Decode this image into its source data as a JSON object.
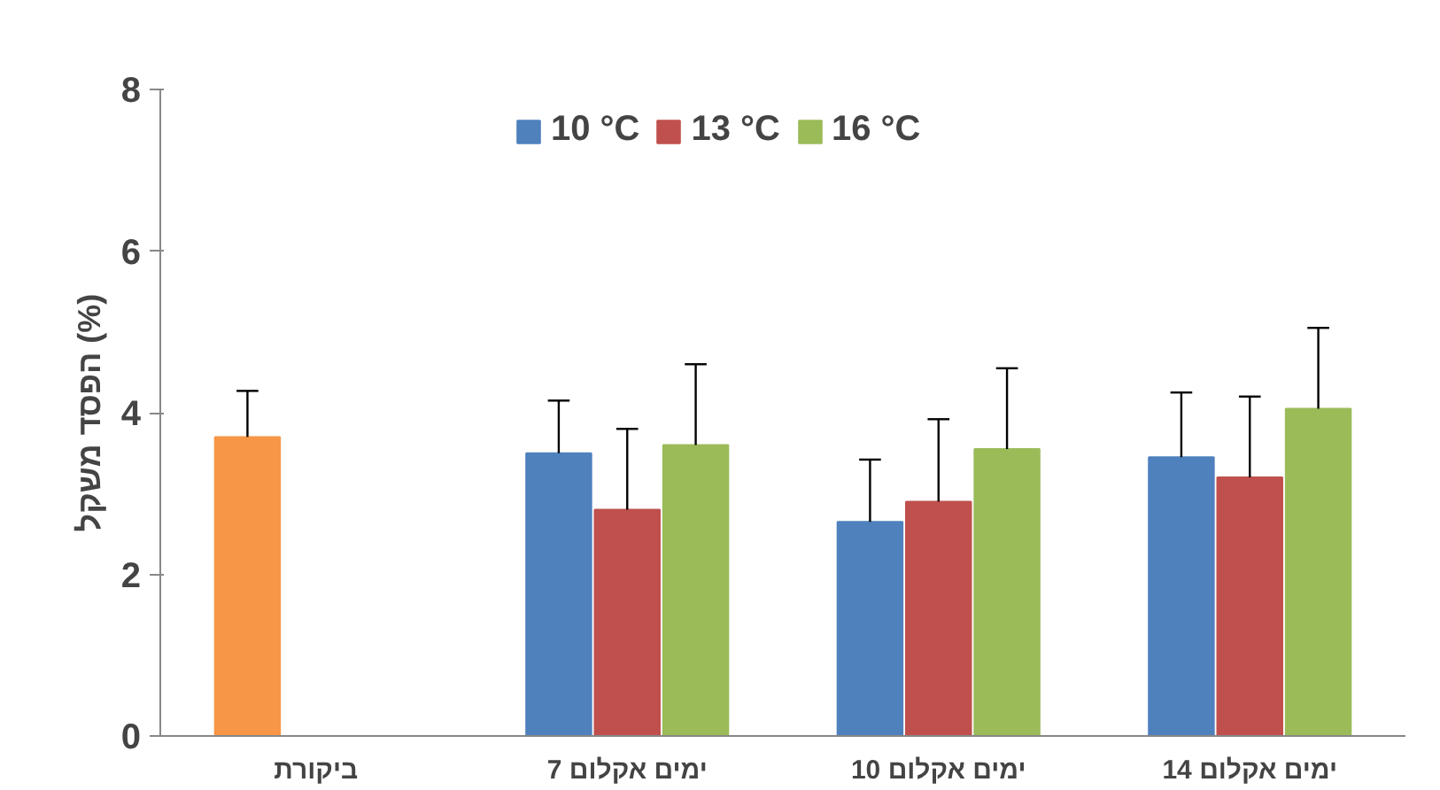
{
  "chart_data": {
    "type": "bar",
    "ylabel": "הפסד משקל (%)",
    "categories": [
      "ביקורת",
      "7 ימים אקלום",
      "10 ימים אקלום",
      "14 ימים אקלום"
    ],
    "series": [
      {
        "name": "10 °C",
        "color": "#4f81bd",
        "colors": [
          "#f79646",
          "#4f81bd",
          "#4f81bd",
          "#4f81bd"
        ],
        "values": [
          3.7,
          3.5,
          2.65,
          3.45
        ],
        "errors": [
          [
            3.7,
            4.27
          ],
          [
            3.5,
            4.15
          ],
          [
            2.65,
            3.42
          ],
          [
            3.45,
            4.25
          ]
        ]
      },
      {
        "name": "13 °C",
        "color": "#c0504d",
        "values": [
          null,
          2.8,
          2.9,
          3.2
        ],
        "errors": [
          null,
          [
            2.8,
            3.8
          ],
          [
            2.9,
            3.92
          ],
          [
            3.2,
            4.2
          ]
        ]
      },
      {
        "name": "16 °C",
        "color": "#9bbb59",
        "values": [
          null,
          3.6,
          3.55,
          4.05
        ],
        "errors": [
          null,
          [
            3.6,
            4.6
          ],
          [
            3.55,
            4.55
          ],
          [
            4.05,
            5.05
          ]
        ]
      }
    ],
    "ylim": [
      0,
      8
    ],
    "yticks": [
      0,
      2,
      4,
      6,
      8
    ],
    "grid": false,
    "legend": "top"
  }
}
